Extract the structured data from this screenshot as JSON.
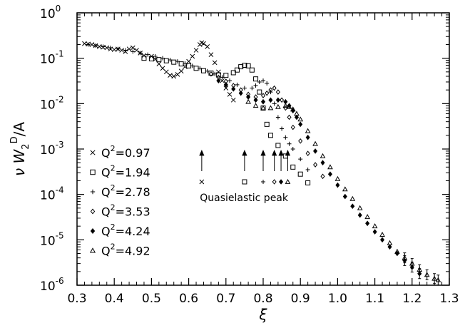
{
  "chart_data": {
    "type": "scatter",
    "title": "",
    "xlabel": "ξ",
    "ylabel": "νW2D/A",
    "ylabel_parts": {
      "main": "ν W",
      "sub": "2",
      "sup": "D",
      "tail": "/A"
    },
    "xlim": [
      0.3,
      1.3
    ],
    "ylim": [
      1e-06,
      1
    ],
    "yscale": "log",
    "grid": false,
    "legend_position": "left-middle",
    "x_ticks": [
      "0.3",
      "0.4",
      "0.5",
      "0.6",
      "0.7",
      "0.8",
      "0.9",
      "1.0",
      "1.1",
      "1.2",
      "1.3"
    ],
    "y_ticks": [
      {
        "base": "10",
        "exp": "0"
      },
      {
        "base": "10",
        "exp": "-1"
      },
      {
        "base": "10",
        "exp": "-2"
      },
      {
        "base": "10",
        "exp": "-3"
      },
      {
        "base": "10",
        "exp": "-4"
      },
      {
        "base": "10",
        "exp": "-5"
      },
      {
        "base": "10",
        "exp": "-6"
      }
    ],
    "annotation": "Quasielastic peak",
    "series": [
      {
        "name": "Q²=0.97",
        "label_base": "Q",
        "label_sup": "2",
        "label_value": "=0.97",
        "marker": "x",
        "peak_x": 0.635,
        "points": [
          [
            0.32,
            0.21
          ],
          [
            0.33,
            0.205
          ],
          [
            0.34,
            0.2
          ],
          [
            0.35,
            0.19
          ],
          [
            0.36,
            0.18
          ],
          [
            0.37,
            0.175
          ],
          [
            0.38,
            0.17
          ],
          [
            0.39,
            0.16
          ],
          [
            0.4,
            0.155
          ],
          [
            0.41,
            0.16
          ],
          [
            0.42,
            0.15
          ],
          [
            0.43,
            0.14
          ],
          [
            0.44,
            0.16
          ],
          [
            0.45,
            0.17
          ],
          [
            0.46,
            0.15
          ],
          [
            0.47,
            0.13
          ],
          [
            0.48,
            0.115
          ],
          [
            0.5,
            0.11
          ],
          [
            0.51,
            0.095
          ],
          [
            0.52,
            0.075
          ],
          [
            0.53,
            0.06
          ],
          [
            0.54,
            0.05
          ],
          [
            0.55,
            0.042
          ],
          [
            0.56,
            0.04
          ],
          [
            0.57,
            0.044
          ],
          [
            0.58,
            0.052
          ],
          [
            0.59,
            0.065
          ],
          [
            0.6,
            0.085
          ],
          [
            0.61,
            0.11
          ],
          [
            0.62,
            0.15
          ],
          [
            0.63,
            0.2
          ],
          [
            0.635,
            0.22
          ],
          [
            0.64,
            0.21
          ],
          [
            0.65,
            0.18
          ],
          [
            0.66,
            0.12
          ],
          [
            0.67,
            0.08
          ],
          [
            0.68,
            0.05
          ],
          [
            0.69,
            0.032
          ],
          [
            0.7,
            0.022
          ],
          [
            0.71,
            0.016
          ],
          [
            0.72,
            0.012
          ]
        ]
      },
      {
        "name": "Q²=1.94",
        "label_base": "Q",
        "label_sup": "2",
        "label_value": "=1.94",
        "marker": "square",
        "peak_x": 0.75,
        "points": [
          [
            0.48,
            0.1
          ],
          [
            0.5,
            0.097
          ],
          [
            0.52,
            0.093
          ],
          [
            0.54,
            0.088
          ],
          [
            0.56,
            0.082
          ],
          [
            0.58,
            0.075
          ],
          [
            0.6,
            0.068
          ],
          [
            0.62,
            0.06
          ],
          [
            0.64,
            0.053
          ],
          [
            0.66,
            0.047
          ],
          [
            0.68,
            0.043
          ],
          [
            0.7,
            0.042
          ],
          [
            0.72,
            0.048
          ],
          [
            0.73,
            0.055
          ],
          [
            0.74,
            0.065
          ],
          [
            0.75,
            0.07
          ],
          [
            0.76,
            0.068
          ],
          [
            0.77,
            0.055
          ],
          [
            0.78,
            0.035
          ],
          [
            0.79,
            0.018
          ],
          [
            0.8,
            0.008
          ],
          [
            0.81,
            0.0035
          ],
          [
            0.82,
            0.002
          ],
          [
            0.84,
            0.0012
          ],
          [
            0.86,
            0.0007
          ],
          [
            0.88,
            0.0004
          ],
          [
            0.9,
            0.00028
          ],
          [
            0.92,
            0.00018
          ]
        ]
      },
      {
        "name": "Q²=2.78",
        "label_base": "Q",
        "label_sup": "2",
        "label_value": "=2.78",
        "marker": "plus",
        "peak_x": 0.8,
        "points": [
          [
            0.33,
            0.2
          ],
          [
            0.35,
            0.19
          ],
          [
            0.37,
            0.18
          ],
          [
            0.39,
            0.17
          ],
          [
            0.41,
            0.16
          ],
          [
            0.43,
            0.15
          ],
          [
            0.45,
            0.14
          ],
          [
            0.47,
            0.13
          ],
          [
            0.49,
            0.12
          ],
          [
            0.51,
            0.11
          ],
          [
            0.53,
            0.1
          ],
          [
            0.55,
            0.092
          ],
          [
            0.57,
            0.085
          ],
          [
            0.59,
            0.077
          ],
          [
            0.61,
            0.068
          ],
          [
            0.63,
            0.06
          ],
          [
            0.65,
            0.052
          ],
          [
            0.67,
            0.045
          ],
          [
            0.69,
            0.038
          ],
          [
            0.71,
            0.032
          ],
          [
            0.73,
            0.026
          ],
          [
            0.75,
            0.022
          ],
          [
            0.77,
            0.022
          ],
          [
            0.78,
            0.025
          ],
          [
            0.79,
            0.03
          ],
          [
            0.8,
            0.032
          ],
          [
            0.81,
            0.028
          ],
          [
            0.82,
            0.018
          ],
          [
            0.83,
            0.01
          ],
          [
            0.84,
            0.005
          ],
          [
            0.85,
            0.0028
          ],
          [
            0.86,
            0.0018
          ],
          [
            0.87,
            0.0013
          ],
          [
            0.88,
            0.001
          ],
          [
            0.9,
            0.0006
          ],
          [
            0.92,
            0.00035
          ]
        ]
      },
      {
        "name": "Q²=3.53",
        "label_base": "Q",
        "label_sup": "2",
        "label_value": "=3.53",
        "marker": "diamond",
        "peak_x": 0.83,
        "points": [
          [
            0.66,
            0.045
          ],
          [
            0.68,
            0.038
          ],
          [
            0.7,
            0.031
          ],
          [
            0.72,
            0.025
          ],
          [
            0.74,
            0.02
          ],
          [
            0.76,
            0.016
          ],
          [
            0.78,
            0.014
          ],
          [
            0.8,
            0.015
          ],
          [
            0.81,
            0.017
          ],
          [
            0.82,
            0.02
          ],
          [
            0.83,
            0.022
          ],
          [
            0.84,
            0.018
          ],
          [
            0.85,
            0.012
          ],
          [
            0.86,
            0.008
          ],
          [
            0.87,
            0.005
          ],
          [
            0.88,
            0.003
          ],
          [
            0.9,
            0.0015
          ],
          [
            0.92,
            0.0008
          ],
          [
            0.94,
            0.00045
          ],
          [
            0.96,
            0.00025
          ]
        ]
      },
      {
        "name": "Q²=4.24",
        "label_base": "Q",
        "label_sup": "2",
        "label_value": "=4.24",
        "marker": "diamond-filled",
        "peak_x": 0.848,
        "points": [
          [
            0.68,
            0.032
          ],
          [
            0.7,
            0.026
          ],
          [
            0.72,
            0.021
          ],
          [
            0.74,
            0.017
          ],
          [
            0.76,
            0.014
          ],
          [
            0.78,
            0.012
          ],
          [
            0.8,
            0.011
          ],
          [
            0.82,
            0.012
          ],
          [
            0.84,
            0.012
          ],
          [
            0.86,
            0.011
          ],
          [
            0.87,
            0.009
          ],
          [
            0.88,
            0.007
          ],
          [
            0.89,
            0.005
          ],
          [
            0.9,
            0.0035
          ],
          [
            0.92,
            0.0018
          ],
          [
            0.94,
            0.0009
          ],
          [
            0.96,
            0.0005
          ],
          [
            0.98,
            0.00028
          ],
          [
            1.0,
            0.00016
          ],
          [
            1.02,
            9e-05
          ],
          [
            1.04,
            5.5e-05
          ],
          [
            1.06,
            3.5e-05
          ],
          [
            1.08,
            2.3e-05
          ],
          [
            1.1,
            1.5e-05
          ],
          [
            1.12,
            1e-05
          ],
          [
            1.14,
            7e-06
          ],
          [
            1.16,
            5e-06
          ],
          [
            1.18,
            3.5e-06
          ],
          [
            1.2,
            2.5e-06
          ],
          [
            1.22,
            1.8e-06
          ]
        ]
      },
      {
        "name": "Q²=4.92",
        "label_base": "Q",
        "label_sup": "2",
        "label_value": "=4.92",
        "marker": "triangle",
        "peak_x": 0.866,
        "points": [
          [
            0.76,
            0.011
          ],
          [
            0.78,
            0.009
          ],
          [
            0.8,
            0.008
          ],
          [
            0.82,
            0.008
          ],
          [
            0.84,
            0.0085
          ],
          [
            0.86,
            0.009
          ],
          [
            0.87,
            0.0085
          ],
          [
            0.88,
            0.0075
          ],
          [
            0.89,
            0.006
          ],
          [
            0.9,
            0.0045
          ],
          [
            0.92,
            0.0025
          ],
          [
            0.94,
            0.0013
          ],
          [
            0.96,
            0.0007
          ],
          [
            0.98,
            0.0004
          ],
          [
            1.0,
            0.00022
          ],
          [
            1.02,
            0.00013
          ],
          [
            1.04,
            8e-05
          ],
          [
            1.06,
            5e-05
          ],
          [
            1.08,
            3.2e-05
          ],
          [
            1.1,
            2e-05
          ],
          [
            1.12,
            1.3e-05
          ],
          [
            1.14,
            8.5e-06
          ],
          [
            1.16,
            5.5e-06
          ],
          [
            1.18,
            4e-06
          ],
          [
            1.2,
            3e-06
          ],
          [
            1.22,
            2.2e-06
          ],
          [
            1.24,
            1.7e-06
          ],
          [
            1.26,
            1.4e-06
          ],
          [
            1.27,
            1.3e-06
          ]
        ]
      }
    ]
  }
}
